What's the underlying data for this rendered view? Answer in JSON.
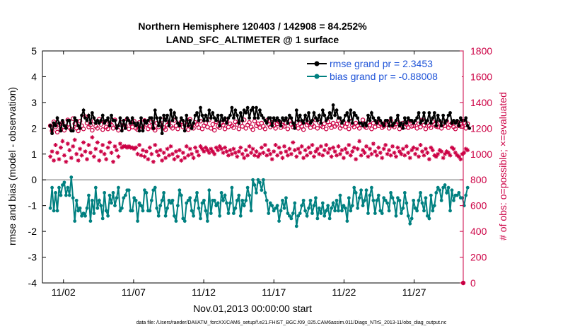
{
  "chart_data": {
    "type": "line",
    "title_line1": "Northern Hemisphere 120403 / 142908 = 84.252%",
    "title_line2": "LAND_SFC_ALTIMETER @ 1 surface",
    "xlabel": "Nov.01,2013 00:00:00 start",
    "ylabel_left": "rmse and bias (model - observation)",
    "ylabel_right": "# of obs: o=possible; ×=evaluated",
    "footer": "data file: /Users/raeder/DAI/ATM_forcXX/CAM6_setup/f.e21.FHIST_BGC.f09_025.CAM6assim.011/Diags_NTrS_2013-11/obs_diag_output.nc",
    "xlim": [
      0.5,
      30.5
    ],
    "ylim_left": [
      -4,
      5
    ],
    "ylim_right": [
      0,
      1800
    ],
    "left_ticks": [
      -4,
      -3,
      -2,
      -1,
      0,
      1,
      2,
      3,
      4,
      5
    ],
    "right_ticks": [
      0,
      200,
      400,
      600,
      800,
      1000,
      1200,
      1400,
      1600,
      1800
    ],
    "x_ticks": [
      {
        "day": 2,
        "label": "11/02"
      },
      {
        "day": 7,
        "label": "11/07"
      },
      {
        "day": 12,
        "label": "11/12"
      },
      {
        "day": 17,
        "label": "11/17"
      },
      {
        "day": 22,
        "label": "11/22"
      },
      {
        "day": 27,
        "label": "11/27"
      }
    ],
    "legend": [
      {
        "name": "rmse",
        "label": "rmse grand pr = 2.3453"
      },
      {
        "name": "bias",
        "label": "bias grand pr = -0.88008"
      }
    ],
    "rmse_hourly": [
      2.1,
      1.8,
      2.2,
      2.1,
      2.4,
      2.2,
      1.9,
      2.3,
      2.1,
      2.0,
      2.3,
      2.3,
      1.9,
      1.9,
      2.4,
      2.3,
      2.1,
      2.0,
      2.5,
      2.7,
      2.4,
      2.3,
      2.5,
      2.2,
      2.6,
      2.4,
      2.2,
      2.3,
      2.2,
      2.3,
      2.5,
      2.2,
      2.3,
      2.4,
      2.1,
      2.5,
      2.3,
      2.3,
      2.0,
      2.1,
      2.4,
      1.9,
      2.3,
      2.0,
      2.4,
      2.3,
      2.2,
      2.4,
      2.2,
      2.1,
      2.2,
      1.9,
      2.4,
      1.9,
      2.3,
      2.2,
      2.3,
      2.4,
      2.4,
      2.0,
      2.7,
      2.4,
      2.1,
      2.4,
      1.8,
      2.5,
      2.3,
      2.5,
      2.1,
      2.7,
      2.3,
      2.6,
      2.4,
      2.2,
      2.1,
      2.4,
      2.3,
      1.9,
      2.5,
      2.1,
      2.3,
      2.0,
      2.2,
      2.5,
      2.6,
      2.3,
      2.8,
      2.5,
      2.3,
      2.5,
      2.3,
      2.7,
      2.4,
      2.6,
      2.4,
      2.3,
      2.5,
      2.1,
      2.5,
      2.3,
      2.4,
      2.2,
      2.4,
      2.5,
      2.8,
      2.4,
      2.7,
      2.5,
      2.2,
      2.6,
      2.3,
      2.7,
      2.6,
      2.8,
      2.4,
      2.7,
      2.8,
      2.4,
      2.8,
      2.4,
      2.7,
      2.5,
      2.4,
      2.3,
      2.2,
      2.4,
      2.4,
      2.1,
      2.4,
      2.3,
      2.4,
      2.3,
      2.1,
      2.4,
      2.3,
      2.4,
      2.2,
      2.5,
      2.4,
      2.2,
      2.0,
      2.7,
      2.3,
      2.5,
      2.3,
      2.2,
      2.5,
      2.3,
      2.6,
      2.2,
      2.3,
      2.6,
      2.4,
      2.3,
      2.5,
      2.2,
      2.7,
      2.5,
      2.3,
      2.4,
      2.6,
      2.4,
      2.9,
      2.5,
      2.7,
      2.4,
      2.4,
      2.2,
      2.3,
      2.5,
      2.6,
      2.3,
      2.7,
      2.2,
      2.6,
      2.5,
      2.4,
      2.2,
      2.2,
      2.1,
      2.2,
      2.1,
      2.5,
      2.3,
      2.6,
      2.4,
      2.3,
      2.2,
      2.4,
      2.3,
      2.2,
      2.1,
      2.3,
      2.3,
      2.1,
      2.4,
      2.1,
      2.2,
      2.3,
      2.5,
      2.1,
      2.2,
      2.0,
      2.4,
      2.2,
      2.4,
      2.3,
      2.3,
      2.2,
      2.3,
      2.4,
      2.6,
      2.2,
      2.3,
      2.6,
      2.2,
      2.3,
      2.6,
      2.2,
      2.4,
      2.6,
      2.1,
      2.5,
      2.3,
      2.1,
      2.5,
      2.2,
      2.3,
      2.5,
      2.6,
      2.2,
      2.3,
      2.2,
      2.3,
      2.1,
      2.4,
      2.3,
      2.3,
      2.4,
      2.1,
      2.0
    ],
    "bias_hourly": [
      -1.1,
      -0.3,
      -1.2,
      -0.5,
      -1.2,
      -0.3,
      -0.6,
      -0.2,
      -0.1,
      -0.6,
      -0.3,
      -0.6,
      0.1,
      -0.7,
      -1.6,
      -0.8,
      -1.2,
      -1.1,
      -1.4,
      -1.3,
      -1.4,
      -1.1,
      -0.6,
      -1.6,
      -0.8,
      -1.3,
      -0.3,
      -1.1,
      -0.8,
      -1.0,
      -1.5,
      -0.5,
      -1.2,
      -1.4,
      -0.6,
      -0.9,
      -0.5,
      -1.0,
      -0.7,
      -0.3,
      -1.2,
      -1.1,
      -0.7,
      -0.6,
      -0.4,
      -0.4,
      -1.2,
      -1.2,
      -0.7,
      -0.8,
      -1.6,
      -0.9,
      -1.0,
      -1.2,
      -0.4,
      -0.5,
      -1.2,
      -1.2,
      -0.8,
      -0.4,
      -0.3,
      -1.1,
      -1.4,
      -1.0,
      -0.8,
      -0.5,
      -1.4,
      -1.1,
      -0.8,
      -0.9,
      -0.8,
      -1.4,
      -1.6,
      -1.0,
      -0.4,
      -0.6,
      -1.5,
      -1.6,
      -0.9,
      -0.8,
      -0.7,
      -1.2,
      -1.4,
      -0.8,
      -0.5,
      -1.1,
      -1.5,
      -0.9,
      -0.8,
      -1.2,
      -1.6,
      -0.4,
      -1.3,
      -0.8,
      -0.8,
      -1.0,
      -0.9,
      -1.4,
      -0.5,
      -0.8,
      -0.6,
      -0.9,
      -1.3,
      -0.9,
      -0.3,
      -1.3,
      -1.1,
      -0.8,
      -0.6,
      -1.4,
      -0.8,
      -1.0,
      -0.8,
      -0.3,
      -0.6,
      -1.2,
      0.0,
      -0.2,
      -0.5,
      0.0,
      -0.1,
      -0.4,
      0.0,
      -0.5,
      -0.8,
      -1.3,
      -0.9,
      -1.0,
      -1.2,
      -1.1,
      -1.0,
      -1.6,
      -1.2,
      -0.8,
      -1.1,
      -0.7,
      -1.3,
      -1.4,
      -1.5,
      -1.3,
      -0.9,
      -1.8,
      -1.4,
      -1.3,
      -1.0,
      -0.8,
      -1.2,
      -1.4,
      -1.1,
      -0.8,
      -1.3,
      -1.0,
      -0.7,
      -1.5,
      -1.1,
      -1.3,
      -0.9,
      -1.4,
      -1.2,
      -1.0,
      -1.5,
      -1.1,
      -0.9,
      -1.2,
      -0.8,
      -1.2,
      -0.6,
      -1.2,
      -1.0,
      -1.1,
      -1.6,
      -0.7,
      -1.2,
      -1.0,
      -0.3,
      -0.5,
      -1.1,
      -0.7,
      -0.4,
      -1.0,
      -0.8,
      -0.4,
      -1.3,
      -0.6,
      -0.3,
      -0.8,
      -1.3,
      -0.8,
      -0.6,
      -1.2,
      -1.3,
      -0.7,
      -0.8,
      -0.9,
      -1.2,
      -0.5,
      -0.7,
      -0.9,
      -1.4,
      -0.7,
      -0.8,
      -1.3,
      -1.1,
      -0.5,
      -0.9,
      -1.4,
      -1.7,
      -1.5,
      -0.8,
      -1.1,
      -1.2,
      -0.8,
      -0.5,
      -0.9,
      -1.2,
      -0.7,
      -1.4,
      -1.5,
      -0.6,
      -1.2,
      -1.0,
      -0.5,
      -0.3,
      -0.4,
      -0.8,
      -0.3,
      -0.2,
      -0.5,
      -0.3,
      -1.2,
      -0.4,
      -0.8,
      -0.6,
      -0.6,
      -0.5,
      -0.7,
      -0.7,
      -1.0,
      -0.6,
      -0.3
    ],
    "possible_hourly": [
      1220,
      1180,
      1250,
      1210,
      1170,
      1230,
      1195,
      1245,
      1185,
      1215,
      1265,
      1205,
      1190,
      1275,
      1235,
      1200,
      1180,
      1255,
      1220,
      1195,
      1290,
      1240,
      1210,
      1225,
      1185,
      1255,
      1215,
      1200,
      1270,
      1230,
      1190,
      1250,
      1210,
      1195,
      1240,
      1225,
      1200,
      1265,
      1215,
      1185,
      1230,
      1245,
      1205,
      1220,
      1270,
      1195,
      1235,
      1210,
      1255,
      1200,
      1190,
      1245,
      1220,
      1205,
      1260,
      1230,
      1195,
      1215,
      1250,
      1200,
      1185,
      1240,
      1210,
      1230,
      1265,
      1205,
      1190,
      1225,
      1245,
      1215,
      1200,
      1260,
      1220,
      1195,
      1235,
      1250,
      1210,
      1240,
      1225,
      1190,
      1270,
      1215,
      1200,
      1245,
      1230,
      1205,
      1255,
      1195,
      1220,
      1240,
      1210,
      1265,
      1200,
      1230,
      1185,
      1250,
      1215,
      1205,
      1240,
      1225,
      1195,
      1260,
      1210,
      1235,
      1220,
      1205,
      1250,
      1230,
      1195,
      1240,
      1215,
      1265,
      1200,
      1225,
      1245,
      1210,
      1190,
      1255,
      1220,
      1235,
      1205,
      1240,
      1215,
      1195,
      1260,
      1230,
      1210,
      1245,
      1220,
      1200,
      1235,
      1250,
      1205,
      1225,
      1215,
      1240,
      1195,
      1260,
      1230,
      1210,
      1220,
      1245,
      1200,
      1235,
      1215,
      1190,
      1255,
      1225,
      1240,
      1205,
      1230,
      1215,
      1265,
      1200,
      1245,
      1220,
      1210,
      1235,
      1195,
      1250,
      1225,
      1205,
      1240,
      1215,
      1230,
      1260,
      1200,
      1220,
      1245,
      1210,
      1235,
      1195,
      1255,
      1225,
      1210,
      1240,
      1220,
      1200,
      1230,
      1265,
      1215,
      1205,
      1245,
      1225,
      1195,
      1240,
      1210,
      1250,
      1220,
      1235,
      1205,
      1215,
      1245,
      1230,
      1200,
      1260,
      1220,
      1210,
      1235,
      1250,
      1195,
      1225,
      1240,
      1210,
      1230,
      1205,
      1255,
      1215,
      1220,
      1245,
      1200,
      1235,
      1210,
      1265,
      1225,
      1195,
      1240,
      1220,
      1205,
      1250,
      1230,
      1215,
      1210,
      1245,
      1200,
      1235,
      1220,
      1255,
      1205,
      1225,
      1240,
      1210,
      1195,
      1250,
      1220,
      1230,
      1215,
      1245,
      1200,
      1235
    ],
    "evaluated_hourly": [
      980,
      1020,
      950,
      1070,
      1010,
      960,
      1050,
      1100,
      990,
      940,
      1080,
      1030,
      970,
      1060,
      1110,
      1000,
      950,
      1040,
      990,
      1090,
      1020,
      960,
      1070,
      1010,
      1130,
      980,
      1040,
      1090,
      950,
      1020,
      1070,
      1000,
      960,
      1050,
      1090,
      1010,
      940,
      1060,
      1030,
      980,
      1080,
      1050,
      1060,
      1060,
      1050,
      1060,
      1050,
      1050,
      1040,
      1050,
      1000,
      1070,
      990,
      1030,
      980,
      1020,
      960,
      1050,
      1000,
      940,
      1070,
      1020,
      990,
      1030,
      950,
      1010,
      970,
      1040,
      990,
      1060,
      1000,
      960,
      1020,
      980,
      1030,
      950,
      1010,
      970,
      1060,
      990,
      1040,
      1000,
      970,
      1050,
      1020,
      990,
      1060,
      1040,
      1020,
      1050,
      1030,
      1010,
      1040,
      1020,
      1000,
      1050,
      1030,
      1060,
      1040,
      1010,
      1050,
      1020,
      990,
      1030,
      1000,
      1040,
      1010,
      980,
      1020,
      1050,
      1000,
      970,
      1030,
      990,
      1060,
      1010,
      1040,
      990,
      1020,
      980,
      1000,
      1050,
      1010,
      1070,
      990,
      1030,
      1000,
      960,
      1020,
      1070,
      990,
      1050,
      1010,
      970,
      1060,
      1020,
      990,
      1040,
      1000,
      1090,
      1030,
      980,
      1040,
      1010,
      1060,
      970,
      1030,
      990,
      1050,
      1010,
      1070,
      980,
      1020,
      1040,
      1000,
      1060,
      990,
      1030,
      1070,
      1010,
      1040,
      980,
      1050,
      1020,
      990,
      1060,
      1000,
      1030,
      970,
      1040,
      1010,
      1070,
      990,
      1020,
      1050,
      960,
      1040,
      1100,
      990,
      1030,
      1010,
      1060,
      980,
      1040,
      1000,
      1080,
      1020,
      990,
      1050,
      1010,
      970,
      1040,
      1070,
      1000,
      1030,
      990,
      1060,
      1010,
      980,
      1050,
      1020,
      1000,
      1040,
      990,
      1060,
      1010,
      970,
      1030,
      1050,
      1000,
      1040,
      980,
      1070,
      1020,
      990,
      1040,
      1010,
      960,
      1050,
      1030,
      990,
      980,
      1000,
      1030,
      1020,
      970,
      1000,
      1020,
      1010,
      990,
      1050,
      1040,
      1010,
      990,
      980,
      960,
      1000,
      1010,
      1040,
      1030
    ]
  }
}
